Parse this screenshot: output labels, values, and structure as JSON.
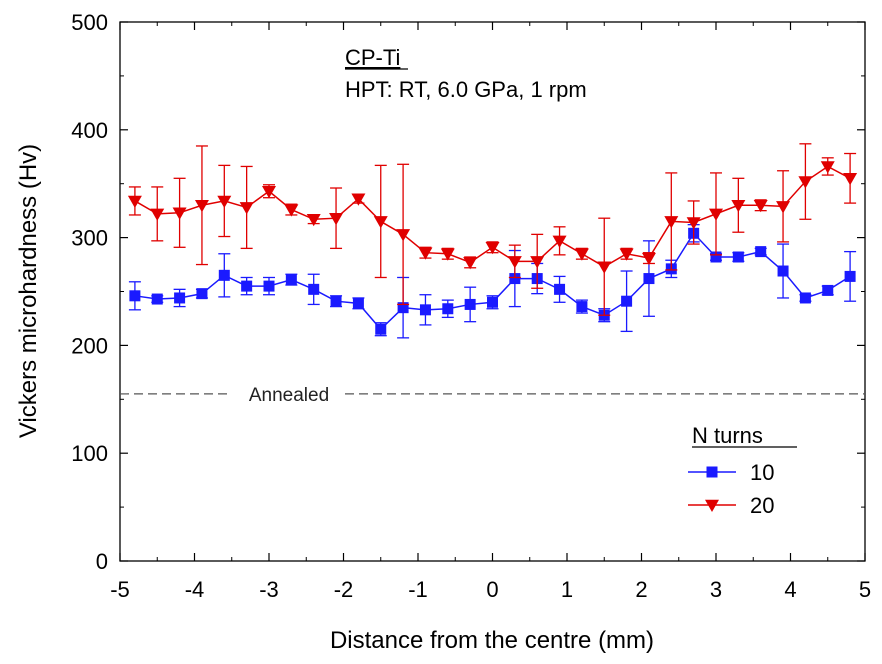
{
  "chart_data": {
    "type": "line",
    "xlabel": "Distance from the centre (mm)",
    "ylabel": "Vickers microhardness (Hv)",
    "xlim": [
      -5,
      5
    ],
    "ylim": [
      0,
      500
    ],
    "x_ticks": [
      "-5",
      "-4",
      "-3",
      "-2",
      "-1",
      "0",
      "1",
      "2",
      "3",
      "4",
      "5"
    ],
    "y_ticks": [
      "0",
      "100",
      "200",
      "300",
      "400",
      "500"
    ],
    "grid": false,
    "annotation": {
      "material": "CP-Ti",
      "conditions": "HPT: RT, 6.0 GPa, 1 rpm"
    },
    "reference_line": {
      "label": "Annealed",
      "value": 155,
      "color": "#555555"
    },
    "legend": {
      "title": "N turns",
      "position": "bottom-right"
    },
    "series": [
      {
        "name": "10",
        "color": "#1a1aff",
        "marker": "square",
        "x": [
          -4.8,
          -4.5,
          -4.2,
          -3.9,
          -3.6,
          -3.3,
          -3.0,
          -2.7,
          -2.4,
          -2.1,
          -1.8,
          -1.5,
          -1.2,
          -0.9,
          -0.6,
          -0.3,
          0.0,
          0.3,
          0.6,
          0.9,
          1.2,
          1.5,
          1.8,
          2.1,
          2.4,
          2.7,
          3.0,
          3.3,
          3.6,
          3.9,
          4.2,
          4.5,
          4.8
        ],
        "y": [
          246,
          243,
          244,
          248,
          265,
          255,
          255,
          261,
          252,
          241,
          239,
          215,
          235,
          233,
          234,
          238,
          240,
          262,
          262,
          252,
          236,
          228,
          241,
          262,
          271,
          304,
          282,
          282,
          287,
          269,
          244,
          251,
          264
        ],
        "err": [
          13,
          3,
          8,
          4,
          20,
          8,
          8,
          5,
          14,
          5,
          5,
          6,
          28,
          14,
          8,
          16,
          6,
          26,
          14,
          12,
          6,
          6,
          28,
          35,
          8,
          8,
          3,
          4,
          3,
          25,
          3,
          4,
          23
        ]
      },
      {
        "name": "20",
        "color": "#e00000",
        "marker": "triangle-down",
        "x": [
          -4.8,
          -4.5,
          -4.2,
          -3.9,
          -3.6,
          -3.3,
          -3.0,
          -2.7,
          -2.4,
          -2.1,
          -1.8,
          -1.5,
          -1.2,
          -0.9,
          -0.6,
          -0.3,
          0.0,
          0.3,
          0.6,
          0.9,
          1.2,
          1.5,
          1.8,
          2.1,
          2.4,
          2.7,
          3.0,
          3.3,
          3.6,
          3.9,
          4.2,
          4.5,
          4.8
        ],
        "y": [
          334,
          322,
          323,
          330,
          334,
          328,
          343,
          326,
          317,
          318,
          336,
          315,
          303,
          286,
          285,
          277,
          291,
          278,
          278,
          297,
          285,
          273,
          285,
          281,
          315,
          314,
          322,
          330,
          330,
          329,
          352,
          366,
          355
        ],
        "err": [
          13,
          25,
          32,
          55,
          33,
          38,
          6,
          5,
          4,
          28,
          4,
          52,
          65,
          5,
          5,
          5,
          5,
          15,
          25,
          13,
          5,
          45,
          5,
          5,
          45,
          20,
          38,
          25,
          5,
          33,
          35,
          8,
          23
        ]
      }
    ]
  }
}
